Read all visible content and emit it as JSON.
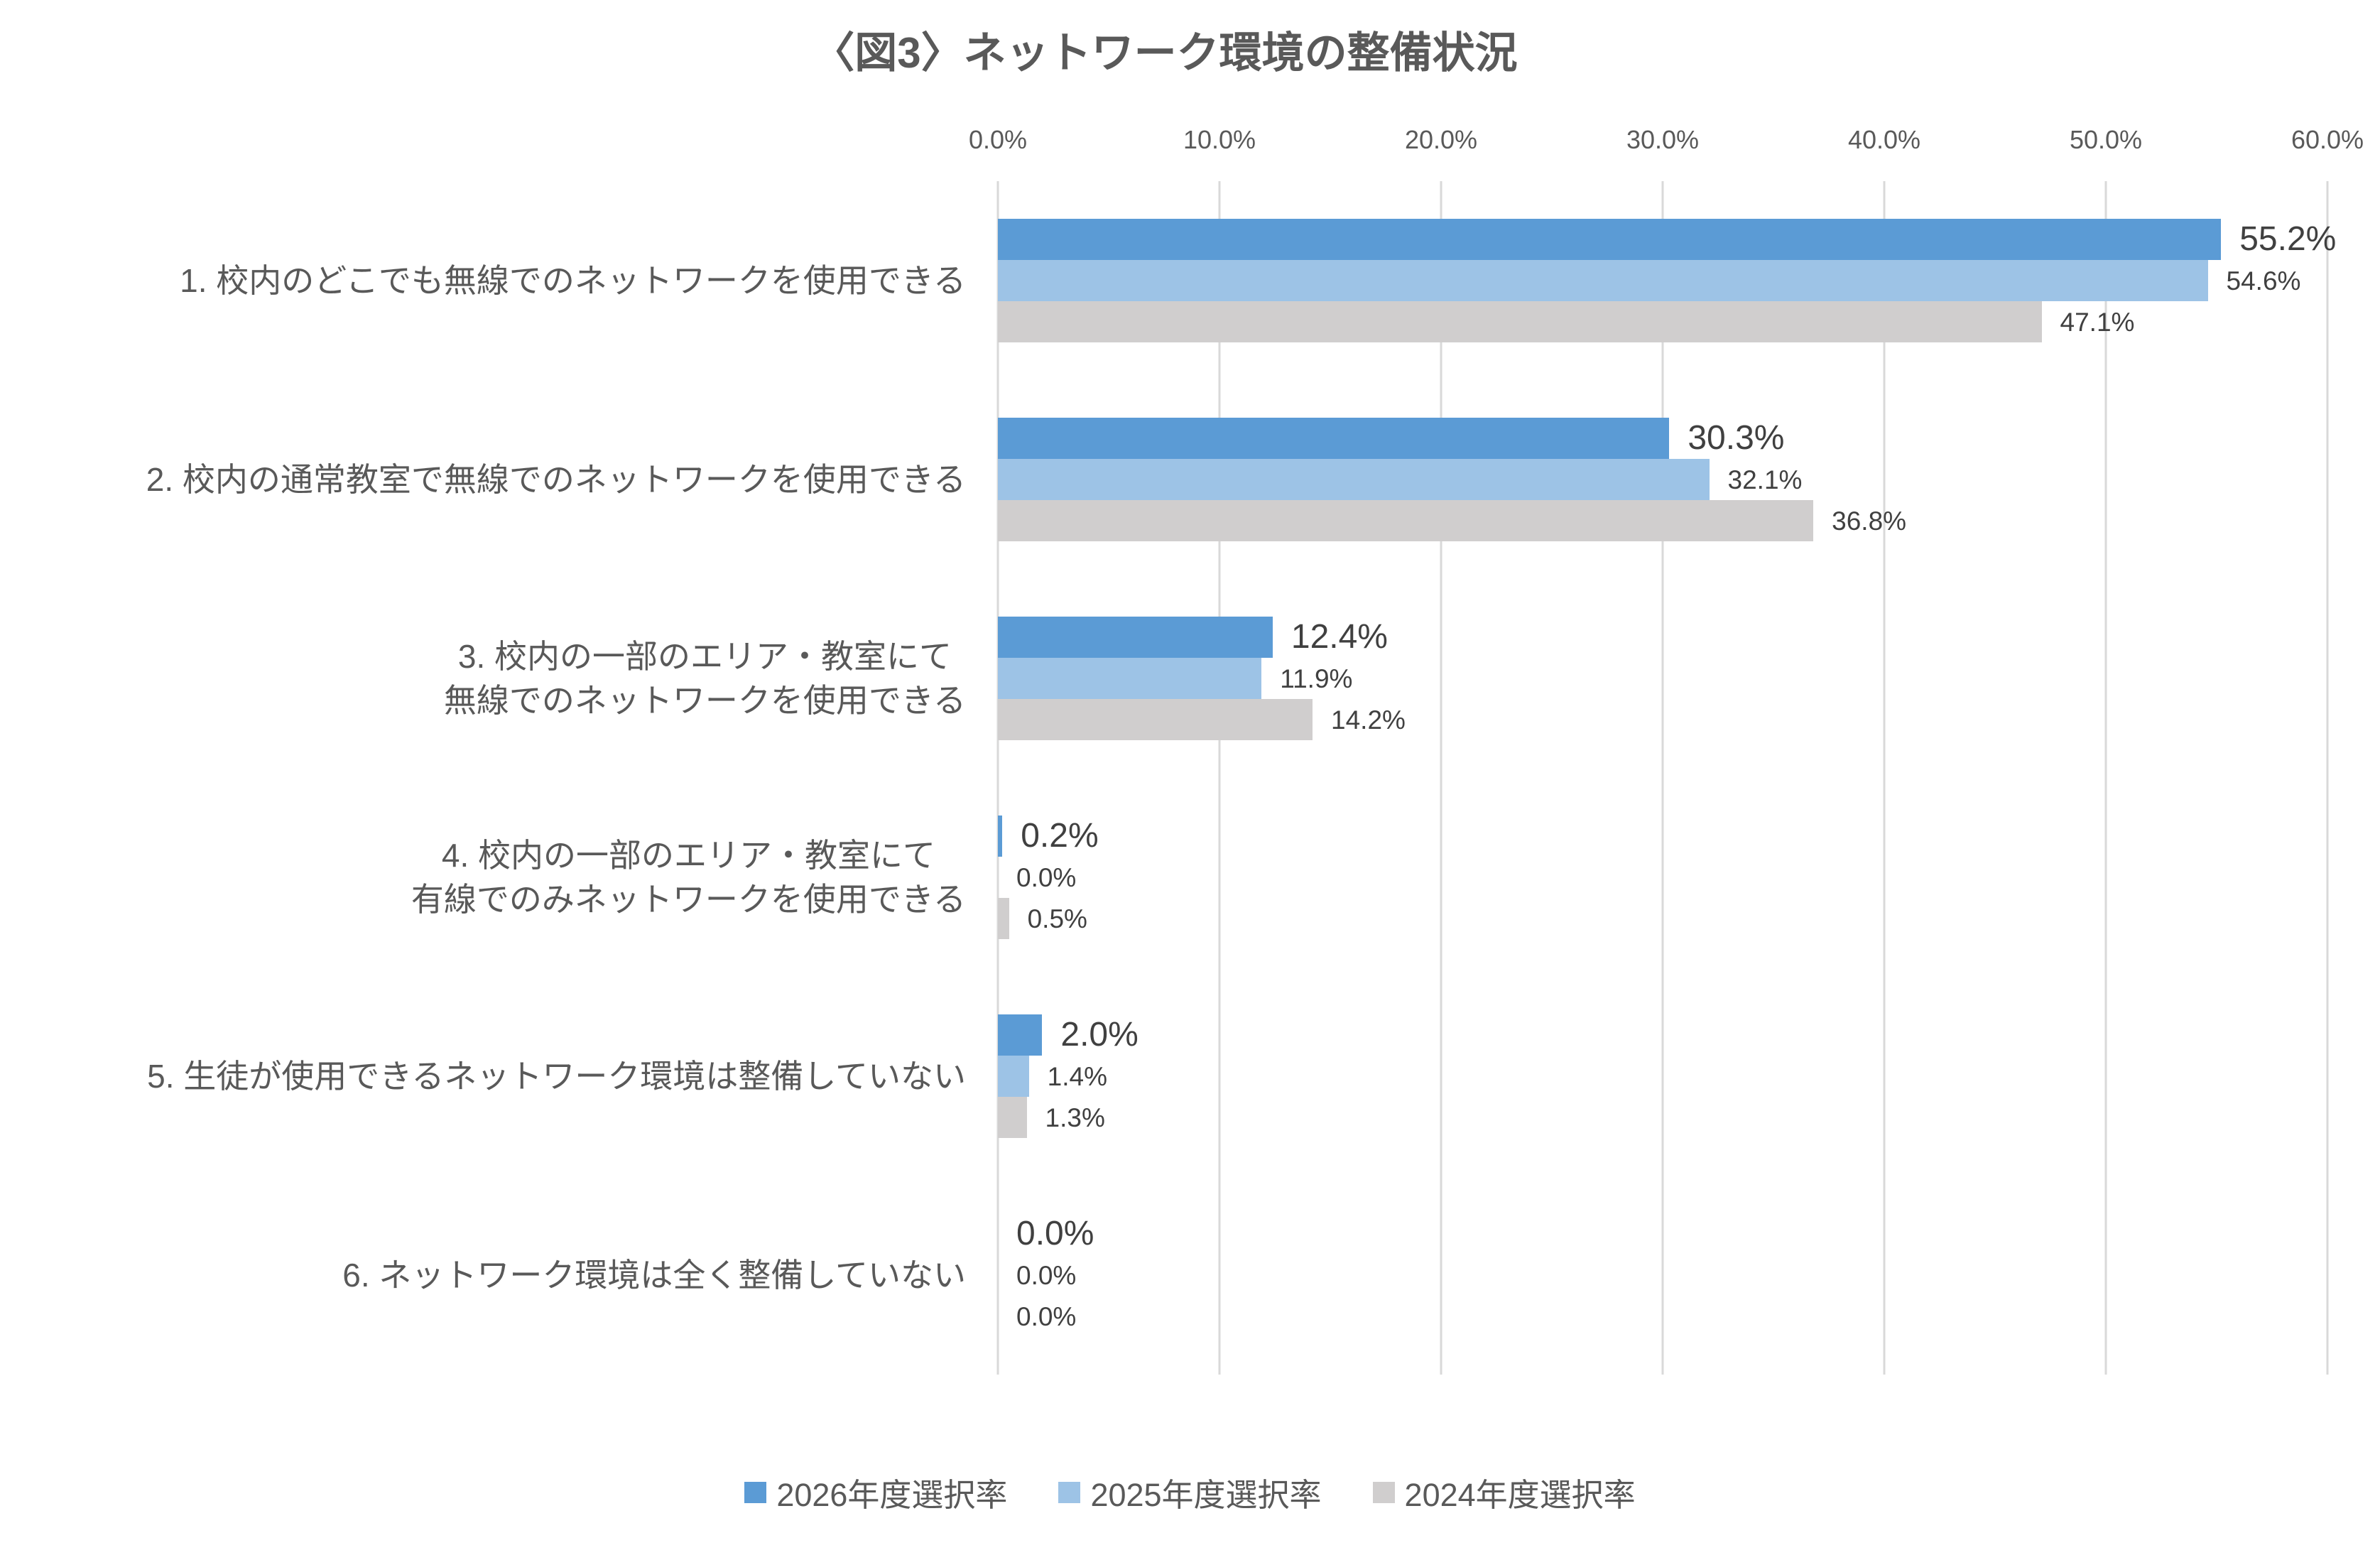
{
  "title": "〈図3〉ネットワーク環境の整備状況",
  "chart_data": {
    "type": "bar",
    "orientation": "horizontal",
    "title": "〈図3〉ネットワーク環境の整備状況",
    "x_axis": {
      "min": 0,
      "max": 60,
      "tick_labels": [
        "0.0%",
        "10.0%",
        "20.0%",
        "30.0%",
        "40.0%",
        "50.0%",
        "60.0%"
      ],
      "grid": true
    },
    "categories": [
      [
        "1. 校内のどこでも無線でのネットワークを使用できる"
      ],
      [
        "2. 校内の通常教室で無線でのネットワークを使用できる"
      ],
      [
        "3. 校内の一部のエリア・教室にて",
        "無線でのネットワークを使用できる"
      ],
      [
        "4. 校内の一部のエリア・教室にて",
        "有線でのみネットワークを使用できる"
      ],
      [
        "5. 生徒が使用できるネットワーク環境は整備していない"
      ],
      [
        "6. ネットワーク環境は全く整備していない"
      ]
    ],
    "series": [
      {
        "name": "2026年度選択率",
        "color": "#5B9BD5",
        "values": [
          55.2,
          30.3,
          12.4,
          0.2,
          2.0,
          0.0
        ]
      },
      {
        "name": "2025年度選択率",
        "color": "#9DC3E6",
        "values": [
          54.6,
          32.1,
          11.9,
          0.0,
          1.4,
          0.0
        ]
      },
      {
        "name": "2024年度選択率",
        "color": "#D0CECE",
        "values": [
          47.1,
          36.8,
          14.2,
          0.5,
          1.3,
          0.0
        ]
      }
    ],
    "value_labels": [
      [
        "55.2%",
        "30.3%",
        "12.4%",
        "0.2%",
        "2.0%",
        "0.0%"
      ],
      [
        "54.6%",
        "32.1%",
        "11.9%",
        "0.0%",
        "1.4%",
        "0.0%"
      ],
      [
        "47.1%",
        "36.8%",
        "14.2%",
        "0.5%",
        "1.3%",
        "0.0%"
      ]
    ],
    "legend_position": "bottom",
    "colors": {
      "gridline": "#D9D9D9",
      "axis_text": "#595959",
      "category_text": "#595959",
      "value_label_text": "#404040",
      "title_text": "#595959"
    }
  }
}
